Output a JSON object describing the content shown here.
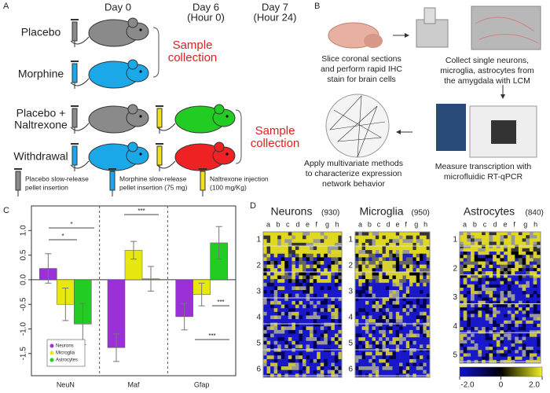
{
  "panel_a": {
    "label": "A",
    "days": [
      [
        "Day 0"
      ],
      [
        "Day 6",
        "(Hour 0)"
      ],
      [
        "Day 7",
        "(Hour 24)"
      ]
    ],
    "groups": [
      [
        "Placebo"
      ],
      [
        "Morphine"
      ],
      [
        "Placebo +",
        "Naltrexone"
      ],
      [
        "Withdrawal"
      ]
    ],
    "sample_collection": [
      "Sample",
      "collection"
    ],
    "legend": [
      [
        "Placebo slow-release",
        "pellet insertion"
      ],
      [
        "Morphine slow-release",
        "pellet insertion (75 mg)"
      ],
      [
        "Naltrexone injection",
        "(100 mg/Kg)"
      ]
    ]
  },
  "panel_b": {
    "label": "B",
    "steps": [
      [
        "Slice coronal sections",
        "and perform rapid IHC",
        "stain for brain cells"
      ],
      [
        "Collect single neurons,",
        "microglia, astrocytes from",
        "the amygdala with LCM"
      ],
      [
        "Measure transcription with",
        "microfluidic RT-qPCR"
      ],
      [
        "Apply multivariate methods",
        "to characterize expression",
        "network behavior"
      ]
    ]
  },
  "chart_data": {
    "type": "bar",
    "label": "C",
    "categories": [
      "NeuN",
      "Maf",
      "Gfap"
    ],
    "series": [
      {
        "name": "Neurons",
        "color": "#9b30d9",
        "values": [
          0.23,
          -1.38,
          -0.75
        ],
        "errors": [
          0.3,
          0.28,
          0.27
        ]
      },
      {
        "name": "Microglia",
        "color": "#e8e810",
        "values": [
          -0.5,
          0.6,
          -0.3
        ],
        "errors": [
          0.33,
          0.18,
          0.23
        ]
      },
      {
        "name": "Astrocytes",
        "color": "#22cc22",
        "values": [
          -0.9,
          0.02,
          0.75
        ],
        "errors": [
          0.42,
          0.25,
          0.33
        ]
      }
    ],
    "ylim": [
      -1.95,
      1.5
    ],
    "yticks": [
      {
        "value": 1,
        "label": "1.0"
      },
      0.5,
      {
        "value": 0,
        "label": "0.0"
      },
      -0.5,
      {
        "value": -1,
        "label": "-1.0"
      },
      -1.5
    ],
    "annotations": [
      "*",
      "*",
      "***",
      "***",
      "***"
    ],
    "legend": "lower left"
  },
  "panel_d": {
    "label": "D",
    "heatmaps": [
      {
        "title": "Neurons",
        "count": "(930)",
        "columns": [
          "a",
          "b",
          "c",
          "d",
          "e",
          "f",
          "g",
          "h"
        ],
        "rows": [
          "1",
          "2",
          "3",
          "4",
          "5",
          "6"
        ]
      },
      {
        "title": "Microglia",
        "count": "(950)",
        "columns": [
          "a",
          "b",
          "c",
          "d",
          "e",
          "f",
          "g",
          "h"
        ],
        "rows": [
          "1",
          "2",
          "3",
          "4",
          "5",
          "6"
        ]
      },
      {
        "title": "Astrocytes",
        "count": "(840)",
        "columns": [
          "a",
          "b",
          "c",
          "d",
          "e",
          "f",
          "g",
          "h"
        ],
        "rows": [
          "1",
          "2",
          "3",
          "4",
          "5"
        ]
      }
    ],
    "colorbar": {
      "ticks": [
        {
          "value": -2,
          "label": "-2.0"
        },
        0,
        {
          "value": 2,
          "label": "2.0"
        }
      ],
      "lim": [
        -2,
        2
      ]
    }
  }
}
